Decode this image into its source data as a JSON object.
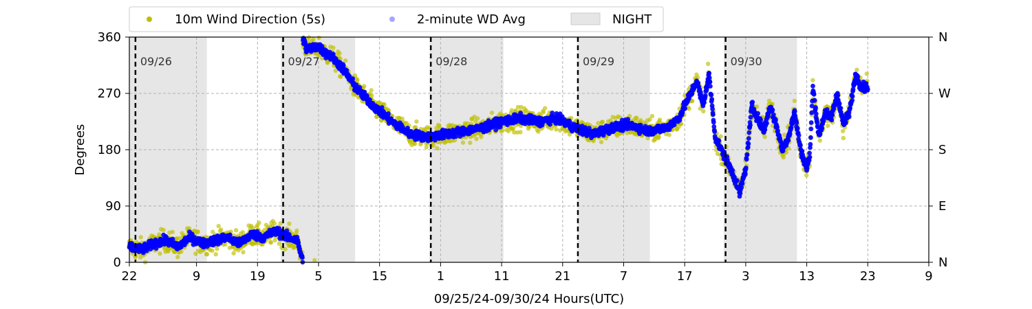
{
  "chart_data": {
    "type": "scatter",
    "xlabel": "09/25/24-09/30/24  Hours(UTC)",
    "ylabel": "Degrees",
    "x_start_hour": 22,
    "x_range_hours": [
      0,
      131
    ],
    "ylim": [
      0,
      360
    ],
    "x_ticks": [
      {
        "hour": 0,
        "label": "22"
      },
      {
        "hour": 11,
        "label": "9"
      },
      {
        "hour": 21,
        "label": "19"
      },
      {
        "hour": 31,
        "label": "5"
      },
      {
        "hour": 41,
        "label": "15"
      },
      {
        "hour": 51,
        "label": "1"
      },
      {
        "hour": 61,
        "label": "11"
      },
      {
        "hour": 71,
        "label": "21"
      },
      {
        "hour": 81,
        "label": "7"
      },
      {
        "hour": 91,
        "label": "17"
      },
      {
        "hour": 101,
        "label": "3"
      },
      {
        "hour": 111,
        "label": "13"
      },
      {
        "hour": 121,
        "label": "23"
      },
      {
        "hour": 131,
        "label": "9"
      }
    ],
    "y_ticks_left": [
      {
        "value": 0,
        "label": "0"
      },
      {
        "value": 90,
        "label": "90"
      },
      {
        "value": 180,
        "label": "180"
      },
      {
        "value": 270,
        "label": "270"
      },
      {
        "value": 360,
        "label": "360"
      }
    ],
    "y_ticks_right": [
      {
        "value": 0,
        "label": "N"
      },
      {
        "value": 90,
        "label": "E"
      },
      {
        "value": 180,
        "label": "S"
      },
      {
        "value": 270,
        "label": "W"
      },
      {
        "value": 360,
        "label": "N"
      }
    ],
    "grid": true,
    "legend_placement": "top",
    "legend": [
      {
        "label": "10m Wind Direction (5s)",
        "kind": "marker",
        "color": "#bfbf00"
      },
      {
        "label": "2-minute WD Avg",
        "kind": "marker",
        "color": "#0000ff"
      },
      {
        "label": "NIGHT",
        "kind": "patch",
        "color": "#e6e6e6"
      }
    ],
    "night_periods": [
      [
        0,
        12.7
      ],
      [
        24.8,
        37
      ],
      [
        49.2,
        61.3
      ],
      [
        73.4,
        85.3
      ],
      [
        97.4,
        109.4
      ]
    ],
    "day_markers": [
      {
        "hour": 1,
        "label": "09/26"
      },
      {
        "hour": 25.2,
        "label": "09/27"
      },
      {
        "hour": 49.4,
        "label": "09/28"
      },
      {
        "hour": 73.5,
        "label": "09/29"
      },
      {
        "hour": 97.7,
        "label": "09/30"
      }
    ],
    "series": [
      {
        "name": "10m Wind Direction (5s)",
        "color": "#bfbf00",
        "profile_hours": [
          0,
          2,
          4,
          6,
          8,
          10,
          12,
          14,
          16,
          18,
          20,
          22,
          24,
          26,
          27.5,
          29,
          31,
          32,
          33,
          35,
          37,
          40,
          43,
          46,
          49,
          52,
          55,
          58,
          61,
          64,
          67,
          70,
          73,
          76,
          79,
          82,
          85,
          88,
          90,
          92,
          93,
          94,
          95,
          96,
          98,
          99,
          100,
          101,
          102,
          103,
          104,
          105,
          106,
          107,
          108,
          109,
          110,
          111,
          111.5,
          112,
          113,
          114,
          115,
          116,
          117,
          118,
          119,
          120,
          121
        ],
        "profile_values": [
          25,
          20,
          30,
          35,
          25,
          40,
          30,
          35,
          40,
          30,
          45,
          40,
          50,
          40,
          35,
          340,
          345,
          335,
          330,
          310,
          280,
          250,
          225,
          205,
          200,
          205,
          210,
          215,
          225,
          230,
          225,
          230,
          215,
          205,
          215,
          220,
          210,
          215,
          230,
          270,
          290,
          250,
          300,
          200,
          160,
          140,
          110,
          150,
          250,
          230,
          210,
          250,
          220,
          180,
          200,
          240,
          180,
          150,
          170,
          280,
          200,
          240,
          230,
          270,
          220,
          240,
          300,
          280,
          280
        ],
        "spread_degrees": 30
      },
      {
        "name": "2-minute WD Avg",
        "color": "#0000ff",
        "profile_hours": [
          0,
          2,
          4,
          6,
          8,
          10,
          12,
          14,
          16,
          18,
          20,
          22,
          24,
          26,
          27.5,
          29,
          31,
          32,
          33,
          35,
          37,
          40,
          43,
          46,
          49,
          52,
          55,
          58,
          61,
          64,
          67,
          70,
          73,
          76,
          79,
          82,
          85,
          88,
          90,
          92,
          93,
          94,
          95,
          96,
          98,
          99,
          100,
          101,
          102,
          103,
          104,
          105,
          106,
          107,
          108,
          109,
          110,
          111,
          111.5,
          112,
          113,
          114,
          115,
          116,
          117,
          118,
          119,
          120,
          121
        ],
        "profile_values": [
          25,
          20,
          30,
          35,
          25,
          40,
          30,
          35,
          40,
          30,
          45,
          40,
          50,
          40,
          35,
          340,
          345,
          335,
          330,
          310,
          280,
          250,
          225,
          205,
          200,
          205,
          210,
          215,
          225,
          230,
          225,
          230,
          215,
          205,
          215,
          220,
          210,
          215,
          230,
          270,
          290,
          250,
          300,
          200,
          160,
          140,
          110,
          150,
          250,
          230,
          210,
          250,
          220,
          180,
          200,
          240,
          180,
          150,
          170,
          280,
          200,
          240,
          230,
          270,
          220,
          240,
          300,
          280,
          280
        ],
        "spread_degrees": 12
      }
    ]
  }
}
